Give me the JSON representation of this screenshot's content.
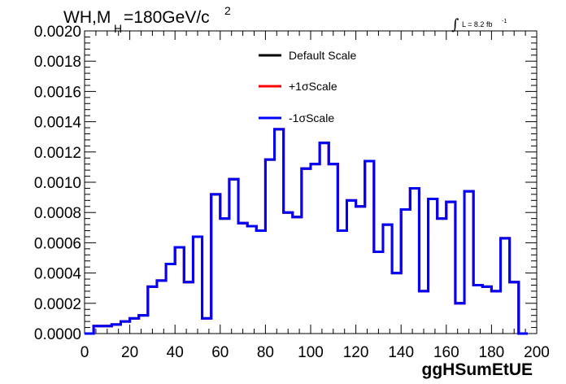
{
  "chart_data": {
    "type": "histogram",
    "title": {
      "main": "WH,M",
      "sub": "H",
      "rest": "=180GeV/c",
      "sup": "2"
    },
    "xlabel": "ggHSumEtUE",
    "ylabel": "",
    "xlim": [
      0,
      200
    ],
    "ylim": [
      0,
      0.002
    ],
    "x_ticks": [
      0,
      20,
      40,
      60,
      80,
      100,
      120,
      140,
      160,
      180,
      200
    ],
    "y_ticks": [
      0.0,
      0.0002,
      0.0004,
      0.0006,
      0.0008,
      0.001,
      0.0012,
      0.0014,
      0.0016,
      0.0018,
      0.002
    ],
    "y_tick_labels": [
      "0.0000",
      "0.0002",
      "0.0004",
      "0.0006",
      "0.0008",
      "0.0010",
      "0.0012",
      "0.0014",
      "0.0016",
      "0.0018",
      "0.0020"
    ],
    "x_tick_labels": [
      "0",
      "20",
      "40",
      "60",
      "80",
      "100",
      "120",
      "140",
      "160",
      "180",
      "200"
    ],
    "bin_width": 4,
    "bin_edges_start": 0,
    "lumi": {
      "prefix": "∫",
      "text": "L = 8.2 fb",
      "sup": "-1"
    },
    "legend_placement": "top-center",
    "series": [
      {
        "name": "Default Scale",
        "color": "#000000",
        "values": [
          0.0,
          5e-05,
          5e-05,
          6e-05,
          8e-05,
          0.0001,
          0.00012,
          0.00031,
          0.00035,
          0.00046,
          0.00057,
          0.00034,
          0.00064,
          0.0001,
          0.00092,
          0.00076,
          0.00102,
          0.00073,
          0.00071,
          0.00068,
          0.00115,
          0.00135,
          0.0008,
          0.00077,
          0.00109,
          0.00112,
          0.00126,
          0.00112,
          0.00068,
          0.00088,
          0.00084,
          0.00114,
          0.00054,
          0.00072,
          0.0004,
          0.00082,
          0.00096,
          0.00028,
          0.00089,
          0.00076,
          0.00087,
          0.0002,
          0.00094,
          0.00032,
          0.00031,
          0.00028,
          0.00063,
          0.00034,
          0.0
        ]
      },
      {
        "name": "+1σScale",
        "color": "#ff0000",
        "values": [
          0.0,
          5e-05,
          5e-05,
          6e-05,
          8e-05,
          0.0001,
          0.00012,
          0.00031,
          0.00035,
          0.00046,
          0.00057,
          0.00034,
          0.00064,
          0.0001,
          0.00092,
          0.00076,
          0.00102,
          0.00073,
          0.00071,
          0.00068,
          0.00115,
          0.00135,
          0.0008,
          0.00077,
          0.00109,
          0.00112,
          0.00126,
          0.00112,
          0.00068,
          0.00088,
          0.00084,
          0.00114,
          0.00054,
          0.00072,
          0.0004,
          0.00082,
          0.00096,
          0.00028,
          0.00089,
          0.00076,
          0.00087,
          0.0002,
          0.00094,
          0.00032,
          0.00031,
          0.00028,
          0.00063,
          0.00034,
          0.0
        ]
      },
      {
        "name": "-1σScale",
        "color": "#0000ff",
        "values": [
          0.0,
          5e-05,
          5e-05,
          6e-05,
          8e-05,
          0.0001,
          0.00012,
          0.00031,
          0.00035,
          0.00046,
          0.00057,
          0.00034,
          0.00064,
          0.0001,
          0.00092,
          0.00076,
          0.00102,
          0.00073,
          0.00071,
          0.00068,
          0.00115,
          0.00135,
          0.0008,
          0.00077,
          0.00109,
          0.00112,
          0.00126,
          0.00112,
          0.00068,
          0.00088,
          0.00084,
          0.00114,
          0.00054,
          0.00072,
          0.0004,
          0.00082,
          0.00096,
          0.00028,
          0.00089,
          0.00076,
          0.00087,
          0.0002,
          0.00094,
          0.00032,
          0.00031,
          0.00028,
          0.00063,
          0.00034,
          0.0
        ]
      }
    ]
  }
}
